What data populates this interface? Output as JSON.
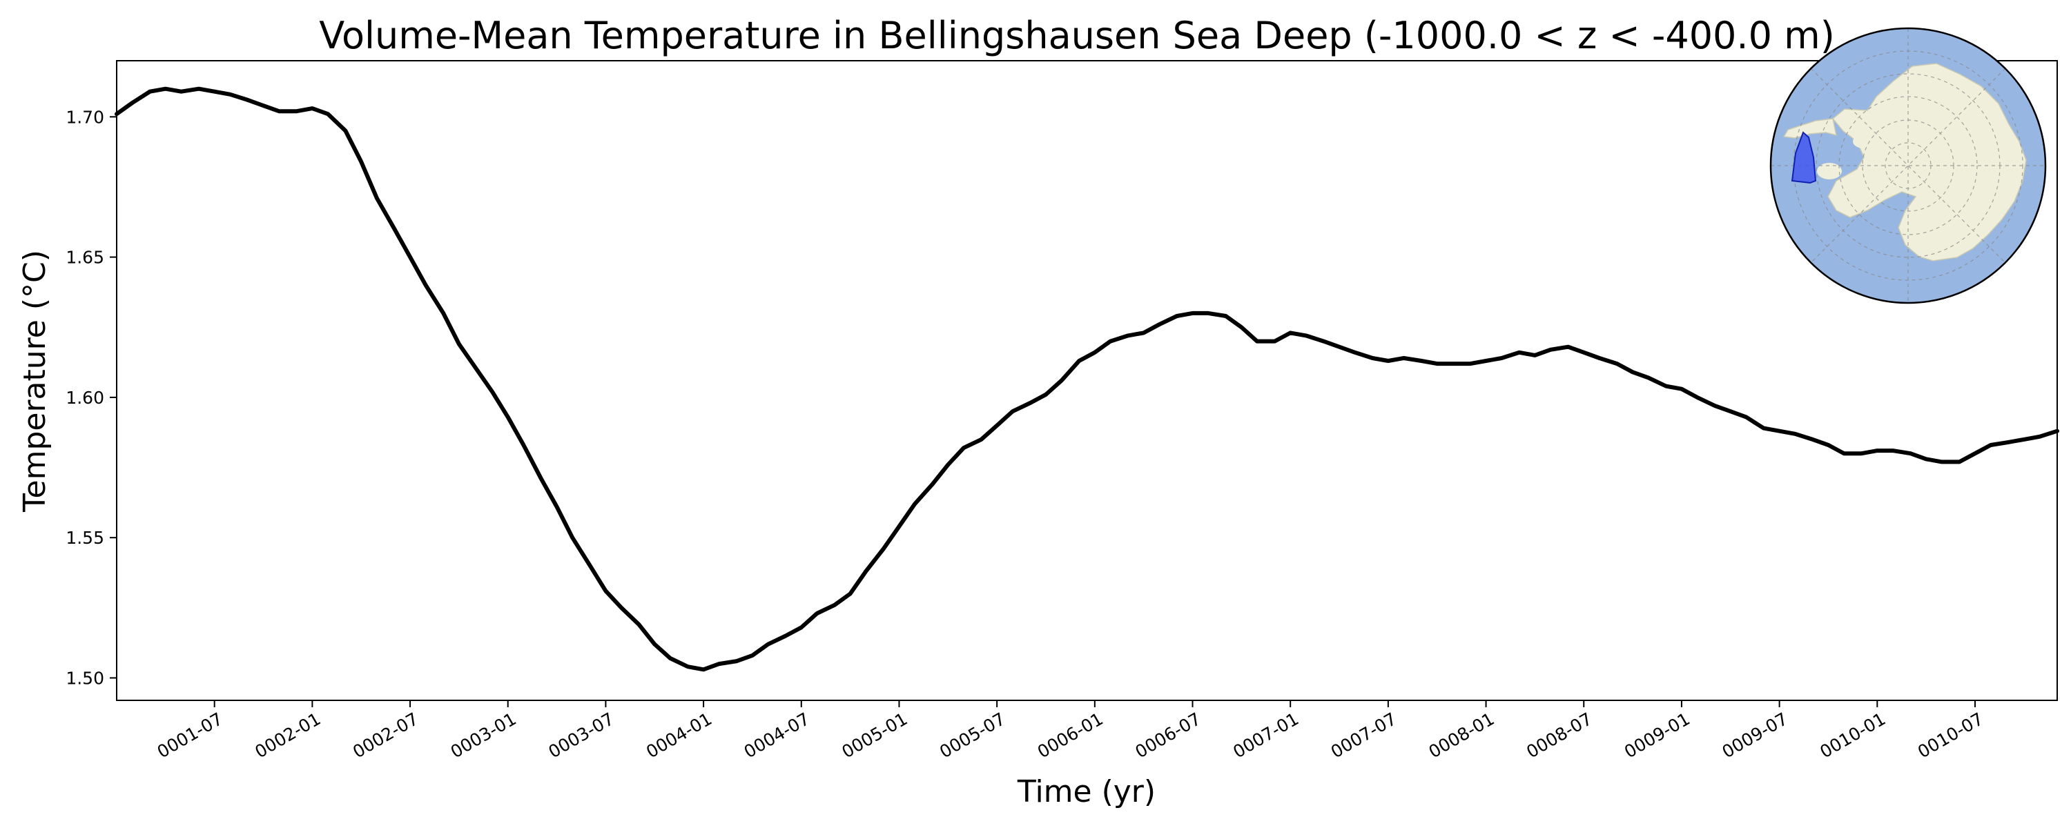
{
  "chart_data": {
    "type": "line",
    "title": "Volume-Mean Temperature in Bellingshausen Sea Deep (-1000.0 < z < -400.0 m)",
    "xlabel": "Time (yr)",
    "ylabel": "Temperature (°C)",
    "xlim": [
      0.0,
      9.92
    ],
    "ylim": [
      1.492,
      1.72
    ],
    "grid": false,
    "x_tick_labels": [
      "0001-07",
      "0002-01",
      "0002-07",
      "0003-01",
      "0003-07",
      "0004-01",
      "0004-07",
      "0005-01",
      "0005-07",
      "0006-01",
      "0006-07",
      "0007-01",
      "0007-07",
      "0008-01",
      "0008-07",
      "0009-01",
      "0009-07",
      "0010-01",
      "0010-07"
    ],
    "x_tick_positions": [
      0.5,
      1.0,
      1.5,
      2.0,
      2.5,
      3.0,
      3.5,
      4.0,
      4.5,
      5.0,
      5.5,
      6.0,
      6.5,
      7.0,
      7.5,
      8.0,
      8.5,
      9.0,
      9.5
    ],
    "y_ticks": [
      1.5,
      1.55,
      1.6,
      1.65,
      1.7
    ],
    "y_tick_labels": [
      "1.50",
      "1.55",
      "1.60",
      "1.65",
      "1.70"
    ],
    "series": [
      {
        "color": "#000000",
        "x": [
          0.0,
          0.08,
          0.17,
          0.25,
          0.33,
          0.42,
          0.5,
          0.58,
          0.67,
          0.75,
          0.83,
          0.92,
          1.0,
          1.08,
          1.17,
          1.25,
          1.33,
          1.42,
          1.5,
          1.58,
          1.67,
          1.75,
          1.83,
          1.92,
          2.0,
          2.08,
          2.17,
          2.25,
          2.33,
          2.42,
          2.5,
          2.58,
          2.67,
          2.75,
          2.83,
          2.92,
          3.0,
          3.08,
          3.17,
          3.25,
          3.33,
          3.42,
          3.5,
          3.58,
          3.67,
          3.75,
          3.83,
          3.92,
          4.0,
          4.08,
          4.17,
          4.25,
          4.33,
          4.42,
          4.5,
          4.58,
          4.67,
          4.75,
          4.83,
          4.92,
          5.0,
          5.08,
          5.17,
          5.25,
          5.33,
          5.42,
          5.5,
          5.58,
          5.67,
          5.75,
          5.83,
          5.92,
          6.0,
          6.08,
          6.17,
          6.25,
          6.33,
          6.42,
          6.5,
          6.58,
          6.67,
          6.75,
          6.83,
          6.92,
          7.0,
          7.08,
          7.17,
          7.25,
          7.33,
          7.42,
          7.5,
          7.58,
          7.67,
          7.75,
          7.83,
          7.92,
          8.0,
          8.08,
          8.17,
          8.25,
          8.33,
          8.42,
          8.5,
          8.58,
          8.67,
          8.75,
          8.83,
          8.92,
          9.0,
          9.08,
          9.17,
          9.25,
          9.33,
          9.42,
          9.5,
          9.58,
          9.67,
          9.75,
          9.83,
          9.92
        ],
        "y": [
          1.701,
          1.705,
          1.709,
          1.71,
          1.709,
          1.71,
          1.709,
          1.708,
          1.706,
          1.704,
          1.702,
          1.702,
          1.703,
          1.701,
          1.695,
          1.684,
          1.671,
          1.66,
          1.65,
          1.64,
          1.63,
          1.619,
          1.611,
          1.602,
          1.593,
          1.583,
          1.571,
          1.561,
          1.55,
          1.54,
          1.531,
          1.525,
          1.519,
          1.512,
          1.507,
          1.504,
          1.503,
          1.505,
          1.506,
          1.508,
          1.512,
          1.515,
          1.518,
          1.523,
          1.526,
          1.53,
          1.538,
          1.546,
          1.554,
          1.562,
          1.569,
          1.576,
          1.582,
          1.585,
          1.59,
          1.595,
          1.598,
          1.601,
          1.606,
          1.613,
          1.616,
          1.62,
          1.622,
          1.623,
          1.626,
          1.629,
          1.63,
          1.63,
          1.629,
          1.625,
          1.62,
          1.62,
          1.623,
          1.622,
          1.62,
          1.618,
          1.616,
          1.614,
          1.613,
          1.614,
          1.613,
          1.612,
          1.612,
          1.612,
          1.613,
          1.614,
          1.616,
          1.615,
          1.617,
          1.618,
          1.616,
          1.614,
          1.612,
          1.609,
          1.607,
          1.604,
          1.603,
          1.6,
          1.597,
          1.595,
          1.593,
          1.589,
          1.588,
          1.587,
          1.585,
          1.583,
          1.58,
          1.58,
          1.581,
          1.581,
          1.58,
          1.578,
          1.577,
          1.577,
          1.58,
          1.583,
          1.584,
          1.585,
          1.586,
          1.588
        ]
      }
    ],
    "inset_map": {
      "description_key": "antarctica-polar-map",
      "ocean_color": "#97b6e1",
      "land_color": "#efefdb",
      "region_color": "#3b4ff0"
    }
  }
}
